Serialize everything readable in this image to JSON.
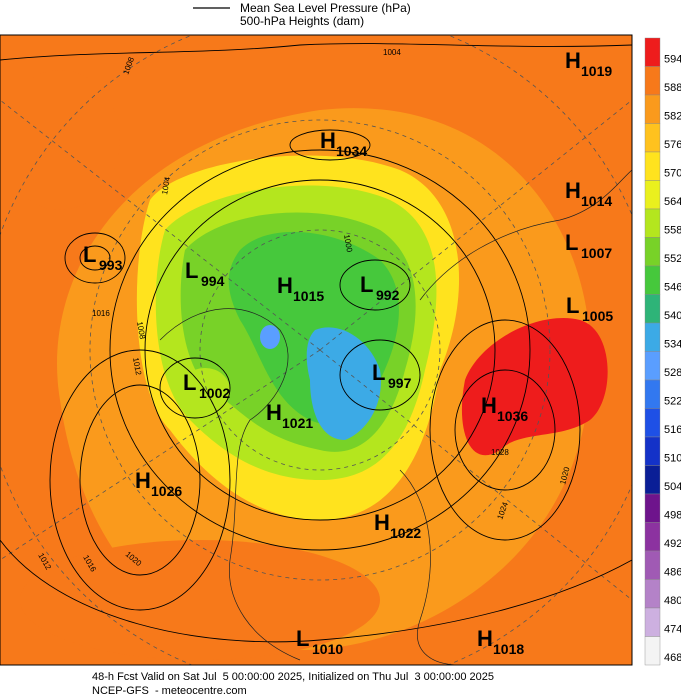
{
  "legend": {
    "pressure_label": "Mean Sea Level Pressure (hPa)",
    "heights_label": "500-hPa Heights (dam)"
  },
  "colorbar": {
    "ticks": [
      594,
      588,
      582,
      576,
      570,
      564,
      558,
      552,
      546,
      540,
      534,
      528,
      522,
      516,
      510,
      504,
      498,
      492,
      486,
      480,
      474,
      468
    ],
    "colors": [
      "#ee1c1c",
      "#f7791a",
      "#fa9a1c",
      "#ffc21e",
      "#ffe31e",
      "#eaf01e",
      "#b4e61e",
      "#78d228",
      "#46c83c",
      "#2eb478",
      "#3caae6",
      "#5a9eff",
      "#3278f0",
      "#1e50e6",
      "#1432c8",
      "#0a1e96",
      "#6e148c",
      "#8c32a0",
      "#a05ab4",
      "#b482c8",
      "#cdb0e0",
      "#f4f4f4"
    ]
  },
  "pressure_centers": [
    {
      "kind": "H",
      "value": 1019
    },
    {
      "kind": "H",
      "value": 1034
    },
    {
      "kind": "H",
      "value": 1014
    },
    {
      "kind": "L",
      "value": 1007
    },
    {
      "kind": "L",
      "value": 993
    },
    {
      "kind": "L",
      "value": 994
    },
    {
      "kind": "H",
      "value": 1015
    },
    {
      "kind": "L",
      "value": 992
    },
    {
      "kind": "L",
      "value": 1005
    },
    {
      "kind": "L",
      "value": 997
    },
    {
      "kind": "L",
      "value": 1002
    },
    {
      "kind": "H",
      "value": 1036
    },
    {
      "kind": "H",
      "value": 1021
    },
    {
      "kind": "H",
      "value": 1026
    },
    {
      "kind": "H",
      "value": 1022
    },
    {
      "kind": "L",
      "value": 1010
    },
    {
      "kind": "H",
      "value": 1018
    }
  ],
  "contour_labels": [
    1004,
    1008,
    1004,
    1000,
    1016,
    1008,
    1012,
    1028,
    1024,
    1020,
    1012,
    1016,
    1020
  ],
  "footer": {
    "line1": "48-h Fcst Valid on Sat Jul  5 00:00:00 2025, Initialized on Thu Jul  3 00:00:00 2025",
    "line2": "NCEP-GFS  - meteocentre.com"
  }
}
